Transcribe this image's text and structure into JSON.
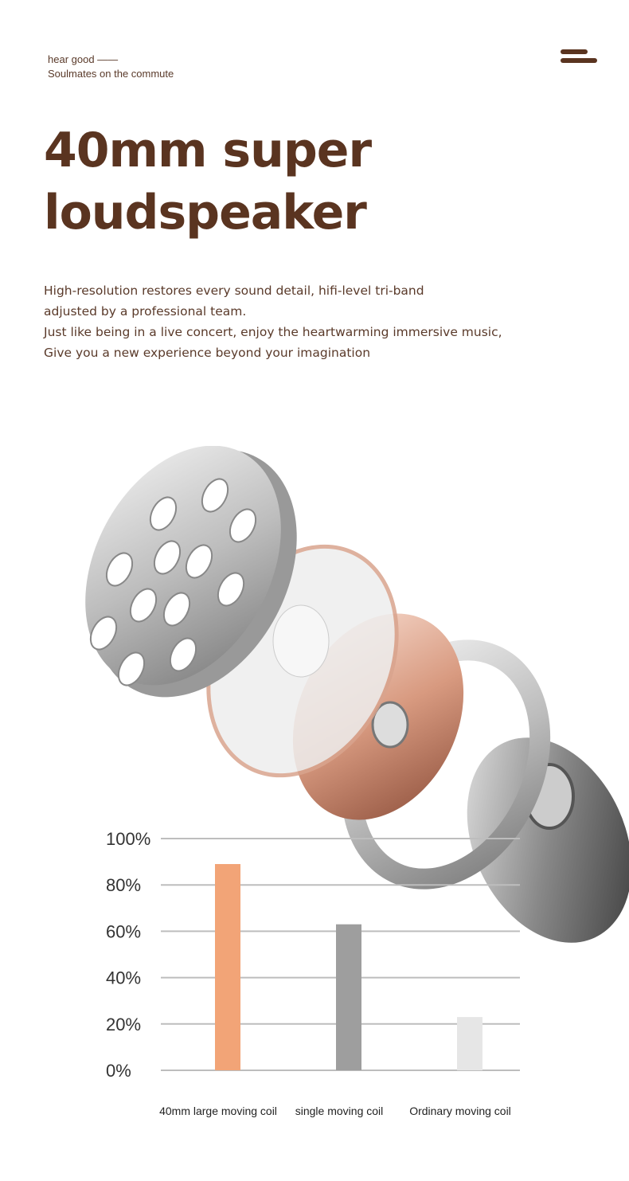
{
  "header": {
    "tagline_1": "hear good ——",
    "tagline_2": "Soulmates on the commute",
    "menu_icon": "menu-icon",
    "menu_color": "#5a3420"
  },
  "title": {
    "line_1": "40mm super",
    "line_2": "loudspeaker"
  },
  "description": [
    "High-resolution restores every sound detail, hifi-level tri-band",
    "adjusted by a professional team.",
    "Just like being in a live concert, enjoy the heartwarming immersive music,",
    "Give you a new experience beyond your imagination"
  ],
  "chart_data": {
    "type": "bar",
    "categories": [
      "40mm large moving coil",
      "single moving coil",
      "Ordinary moving coil"
    ],
    "values": [
      89,
      63,
      23
    ],
    "colors": [
      "#f2a477",
      "#9e9e9e",
      "#e6e6e6"
    ],
    "yticks": [
      "0%",
      "20%",
      "40%",
      "60%",
      "80%",
      "100%"
    ],
    "ylim": [
      0,
      100
    ],
    "grid": true
  }
}
